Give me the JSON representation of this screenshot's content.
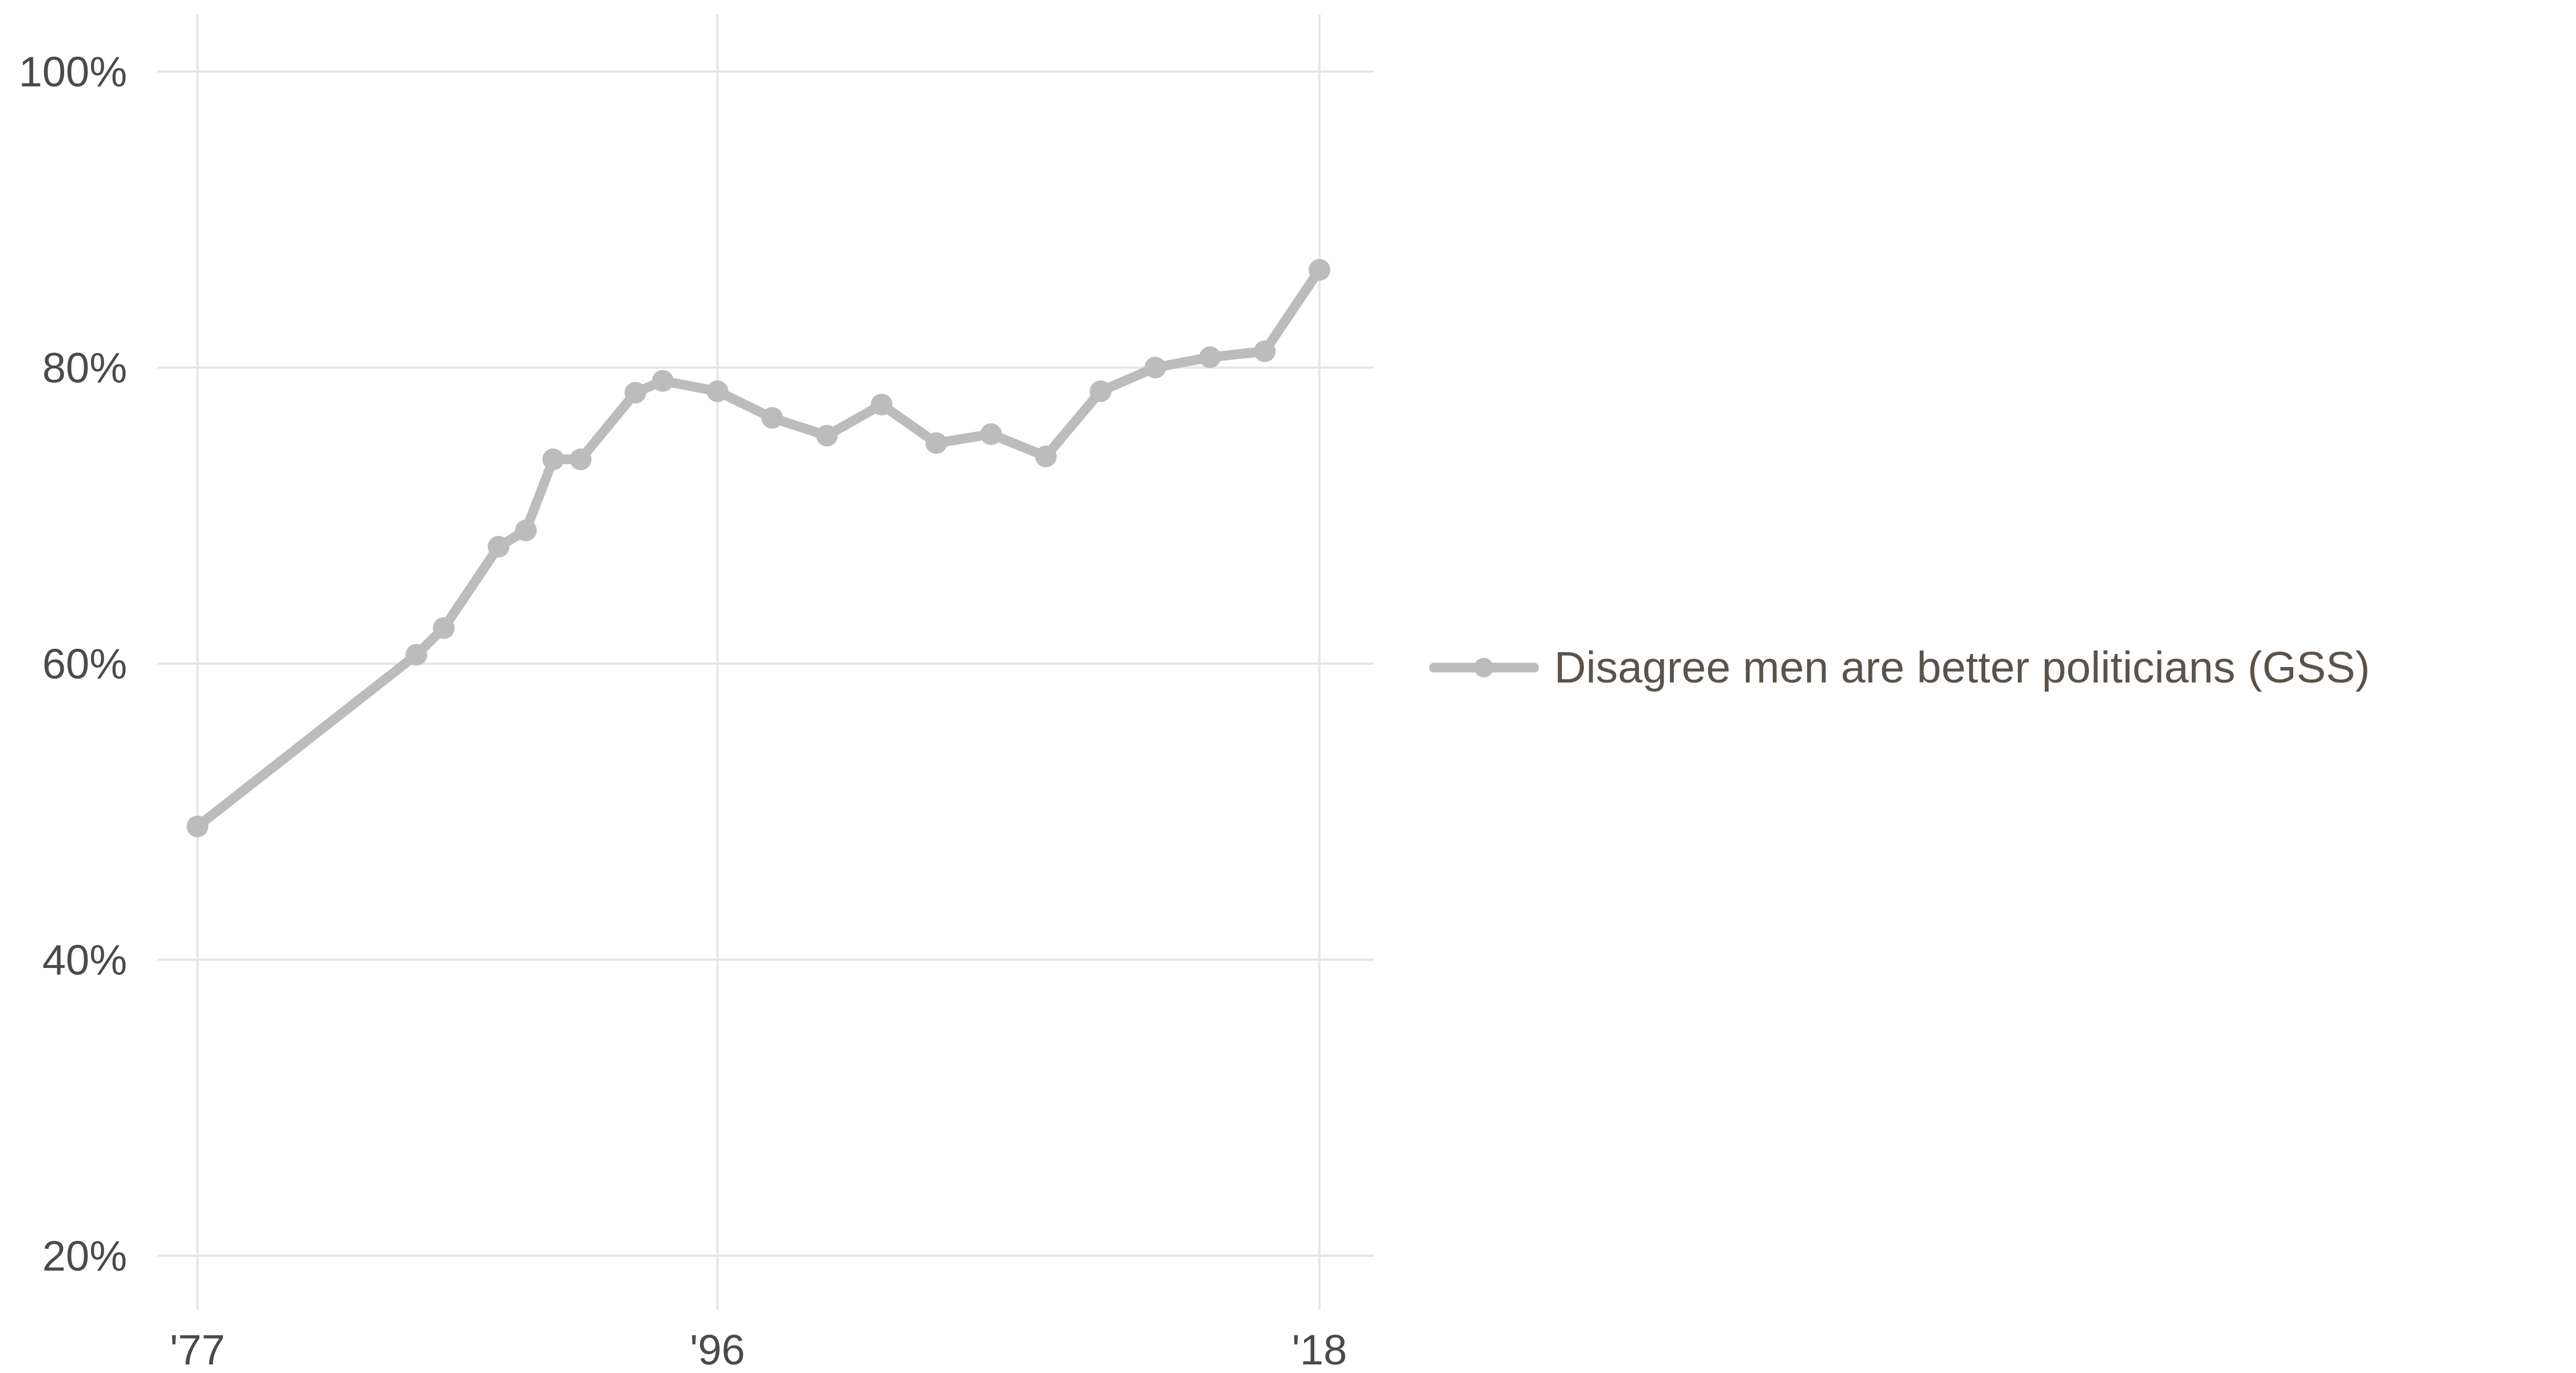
{
  "chart_data": {
    "type": "line",
    "title": "",
    "xlabel": "",
    "ylabel": "",
    "xlim": [
      1977,
      2018
    ],
    "ylim": [
      16,
      104
    ],
    "x_ticks": [
      {
        "value": 1977,
        "label": "'77"
      },
      {
        "value": 1996,
        "label": "'96"
      },
      {
        "value": 2018,
        "label": "'18"
      }
    ],
    "y_ticks": [
      {
        "value": 20,
        "label": "20%"
      },
      {
        "value": 40,
        "label": "40%"
      },
      {
        "value": 60,
        "label": "60%"
      },
      {
        "value": 80,
        "label": "80%"
      },
      {
        "value": 100,
        "label": "100%"
      }
    ],
    "grid": true,
    "legend_position": "right",
    "series": [
      {
        "name": "Disagree men are better politicians (GSS)",
        "color": "#bcbcbc",
        "x": [
          1977,
          1985,
          1986,
          1988,
          1989,
          1990,
          1991,
          1993,
          1994,
          1996,
          1998,
          2000,
          2002,
          2004,
          2006,
          2008,
          2010,
          2012,
          2014,
          2016,
          2018
        ],
        "y": [
          49.0,
          60.6,
          62.4,
          67.9,
          69.0,
          73.8,
          73.8,
          78.3,
          79.1,
          78.4,
          76.6,
          75.4,
          77.5,
          74.9,
          75.5,
          74.0,
          78.4,
          80.0,
          80.7,
          81.1,
          86.6
        ]
      }
    ]
  }
}
